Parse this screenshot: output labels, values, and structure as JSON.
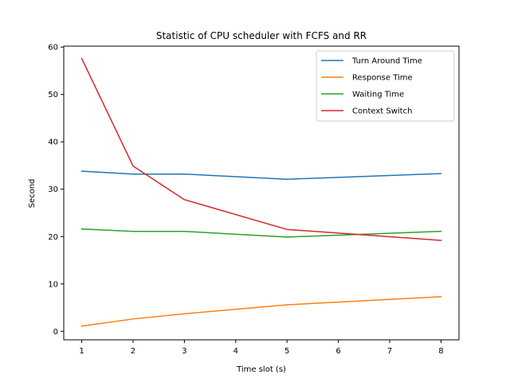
{
  "chart_data": {
    "type": "line",
    "title": "Statistic of CPU scheduler with FCFS and RR",
    "xlabel": "Time slot (s)",
    "ylabel": "Second",
    "x": [
      1,
      2,
      3,
      5,
      8
    ],
    "xticks": [
      1,
      2,
      3,
      4,
      5,
      6,
      7,
      8
    ],
    "yticks": [
      0,
      10,
      20,
      30,
      40,
      50,
      60
    ],
    "xlim": [
      0.65,
      8.35
    ],
    "ylim": [
      -1.8,
      60.2
    ],
    "grid": false,
    "legend_position": "upper right",
    "series": [
      {
        "name": "Turn Around Time",
        "color": "#1f77b4",
        "values": [
          33.8,
          33.2,
          33.2,
          32.1,
          33.3
        ]
      },
      {
        "name": "Response Time",
        "color": "#ff7f0e",
        "values": [
          1.1,
          2.6,
          3.7,
          5.6,
          7.3
        ]
      },
      {
        "name": "Waiting Time",
        "color": "#2ca02c",
        "values": [
          21.6,
          21.1,
          21.1,
          19.9,
          21.1
        ]
      },
      {
        "name": "Context Switch",
        "color": "#d62728",
        "values": [
          57.6,
          34.9,
          27.8,
          21.5,
          19.2
        ]
      }
    ]
  }
}
